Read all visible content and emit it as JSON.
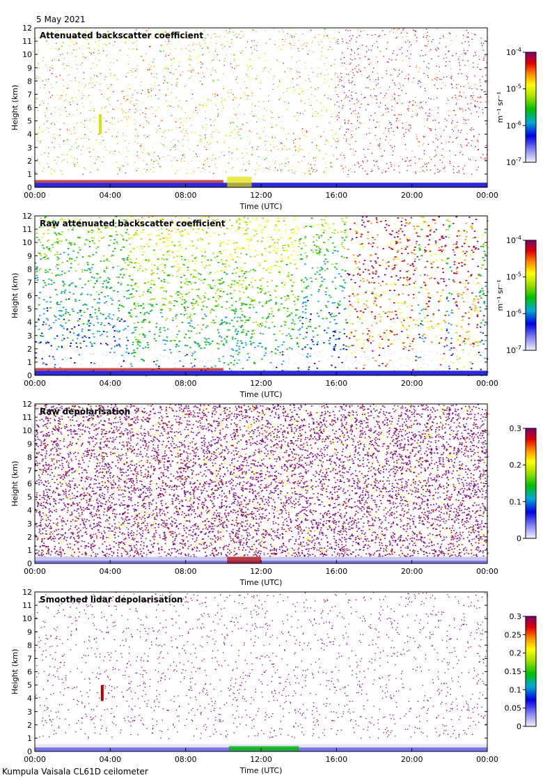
{
  "date_label": "5 May 2021",
  "footer_label": "Kumpula Vaisala CL61D ceilometer",
  "chart_data": [
    {
      "type": "heatmap",
      "title": "Attenuated backscatter coefficient",
      "xlabel": "Time (UTC)",
      "ylabel": "Height (km)",
      "xticks": [
        "00:00",
        "04:00",
        "08:00",
        "12:00",
        "16:00",
        "20:00",
        "00:00"
      ],
      "xlim": [
        0,
        24
      ],
      "ylim": [
        0,
        12
      ],
      "yticks": [
        0,
        1,
        2,
        3,
        4,
        5,
        6,
        7,
        8,
        9,
        10,
        11,
        12
      ],
      "colorbar": {
        "scale": "log",
        "range": [
          1e-07,
          0.0001
        ],
        "unit": "m⁻¹ sr⁻¹",
        "ticks": [
          {
            "v": 1e-07,
            "base": "10",
            "exp": "-7"
          },
          {
            "v": 1e-06,
            "base": "10",
            "exp": "-6"
          },
          {
            "v": 1e-05,
            "base": "10",
            "exp": "-5"
          },
          {
            "v": 0.0001,
            "base": "10",
            "exp": "-4"
          }
        ]
      }
    },
    {
      "type": "heatmap",
      "title": "Raw attenuated backscatter coefficient",
      "xlabel": "Time (UTC)",
      "ylabel": "Height (km)",
      "xticks": [
        "00:00",
        "04:00",
        "08:00",
        "12:00",
        "16:00",
        "20:00",
        "00:00"
      ],
      "xlim": [
        0,
        24
      ],
      "ylim": [
        0,
        12
      ],
      "yticks": [
        0,
        1,
        2,
        3,
        4,
        5,
        6,
        7,
        8,
        9,
        10,
        11,
        12
      ],
      "colorbar": {
        "scale": "log",
        "range": [
          1e-07,
          0.0001
        ],
        "unit": "m⁻¹ sr⁻¹",
        "ticks": [
          {
            "v": 1e-07,
            "base": "10",
            "exp": "-7"
          },
          {
            "v": 1e-06,
            "base": "10",
            "exp": "-6"
          },
          {
            "v": 1e-05,
            "base": "10",
            "exp": "-5"
          },
          {
            "v": 0.0001,
            "base": "10",
            "exp": "-4"
          }
        ]
      }
    },
    {
      "type": "heatmap",
      "title": "Raw depolarisation",
      "xlabel": "Time (UTC)",
      "ylabel": "Height (km)",
      "xticks": [
        "00:00",
        "04:00",
        "08:00",
        "12:00",
        "16:00",
        "20:00",
        "00:00"
      ],
      "xlim": [
        0,
        24
      ],
      "ylim": [
        0,
        12
      ],
      "yticks": [
        0,
        1,
        2,
        3,
        4,
        5,
        6,
        7,
        8,
        9,
        10,
        11,
        12
      ],
      "colorbar": {
        "scale": "linear",
        "range": [
          0,
          0.3
        ],
        "unit": "",
        "ticks": [
          {
            "v": 0,
            "label": "0"
          },
          {
            "v": 0.1,
            "label": "0.1"
          },
          {
            "v": 0.2,
            "label": "0.2"
          },
          {
            "v": 0.3,
            "label": "0.3"
          }
        ]
      }
    },
    {
      "type": "heatmap",
      "title": "Smoothed lidar depolarisation",
      "xlabel": "Time (UTC)",
      "ylabel": "Height (km)",
      "xticks": [
        "00:00",
        "04:00",
        "08:00",
        "12:00",
        "16:00",
        "20:00",
        "00:00"
      ],
      "xlim": [
        0,
        24
      ],
      "ylim": [
        0,
        12
      ],
      "yticks": [
        0,
        1,
        2,
        3,
        4,
        5,
        6,
        7,
        8,
        9,
        10,
        11,
        12
      ],
      "colorbar": {
        "scale": "linear",
        "range": [
          0,
          0.3
        ],
        "unit": "",
        "ticks": [
          {
            "v": 0,
            "label": "0"
          },
          {
            "v": 0.05,
            "label": "0.05"
          },
          {
            "v": 0.1,
            "label": "0.1"
          },
          {
            "v": 0.15,
            "label": "0.15"
          },
          {
            "v": 0.2,
            "label": "0.2"
          },
          {
            "v": 0.25,
            "label": "0.25"
          },
          {
            "v": 0.3,
            "label": "0.3"
          }
        ]
      }
    }
  ]
}
